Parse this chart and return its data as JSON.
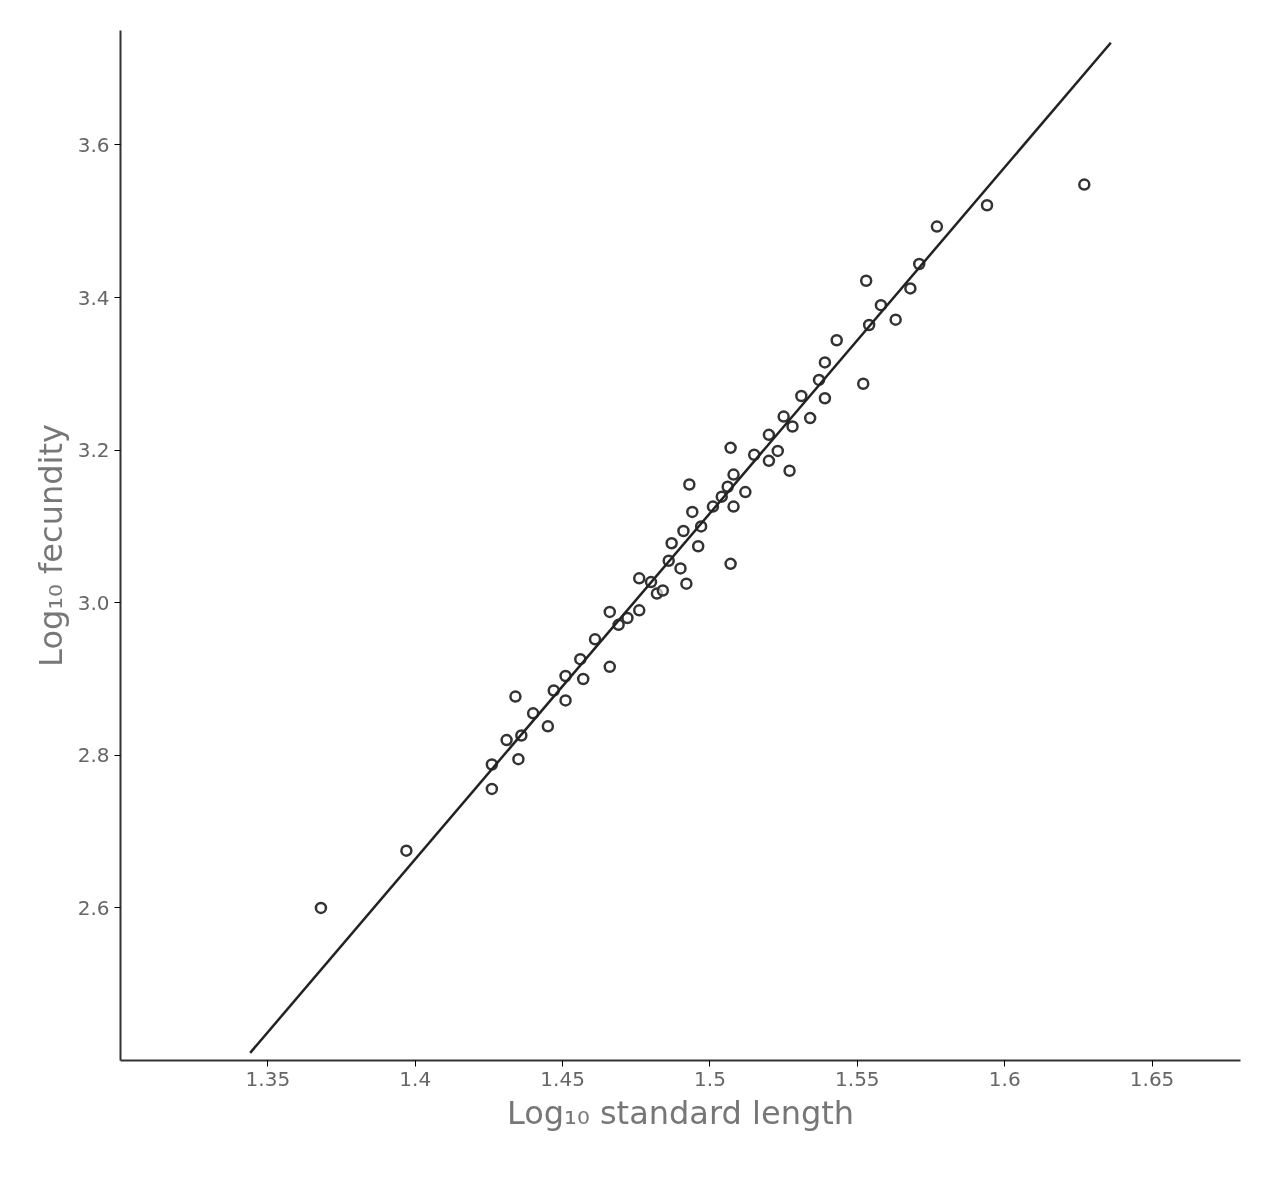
{
  "chart_data": {
    "type": "scatter",
    "xlabel": "Log₁₀ standard length",
    "ylabel": "Log₁₀ fecundity",
    "xlim": [
      1.3,
      1.68
    ],
    "ylim": [
      2.4,
      3.75
    ],
    "xticks": [
      1.35,
      1.4,
      1.45,
      1.5,
      1.55,
      1.6,
      1.65
    ],
    "yticks": [
      2.6,
      2.8,
      {
        "value": 3.0,
        "label": "3.0"
      },
      3.2,
      3.4,
      3.6
    ],
    "grid": false,
    "marker": "circle",
    "series": [
      {
        "color": "#333333",
        "x": [
          1.368,
          1.397,
          1.426,
          1.426,
          1.431,
          1.434,
          1.435,
          1.436,
          1.44,
          1.445,
          1.447,
          1.451,
          1.451,
          1.456,
          1.457,
          1.461,
          1.466,
          1.466,
          1.469,
          1.472,
          1.476,
          1.476,
          1.48,
          1.482,
          1.484,
          1.486,
          1.487,
          1.49,
          1.492,
          1.491,
          1.493,
          1.494,
          1.496,
          1.497,
          1.501,
          1.504,
          1.506,
          1.507,
          1.507,
          1.508,
          1.508,
          1.512,
          1.515,
          1.52,
          1.52,
          1.523,
          1.525,
          1.527,
          1.528,
          1.531,
          1.534,
          1.537,
          1.539,
          1.539,
          1.543,
          1.552,
          1.553,
          1.554,
          1.558,
          1.563,
          1.568,
          1.571,
          1.577,
          1.594,
          1.627
        ],
        "values": [
          2.6,
          2.675,
          2.788,
          2.756,
          2.82,
          2.877,
          2.795,
          2.826,
          2.855,
          2.838,
          2.885,
          2.872,
          2.904,
          2.926,
          2.9,
          2.952,
          2.916,
          2.988,
          2.971,
          2.98,
          3.032,
          2.99,
          3.027,
          3.012,
          3.016,
          3.055,
          3.078,
          3.045,
          3.025,
          3.094,
          3.155,
          3.119,
          3.074,
          3.1,
          3.126,
          3.139,
          3.152,
          3.051,
          3.203,
          3.126,
          3.168,
          3.145,
          3.194,
          3.186,
          3.22,
          3.199,
          3.244,
          3.173,
          3.231,
          3.271,
          3.242,
          3.292,
          3.268,
          3.315,
          3.344,
          3.287,
          3.422,
          3.364,
          3.39,
          3.371,
          3.412,
          3.444,
          3.493,
          3.521,
          3.548
        ]
      },
      {
        "type": "line",
        "color": "#222222",
        "marker": "none",
        "x": [
          1.344,
          1.636
        ],
        "values": [
          2.41,
          3.734
        ]
      }
    ]
  }
}
